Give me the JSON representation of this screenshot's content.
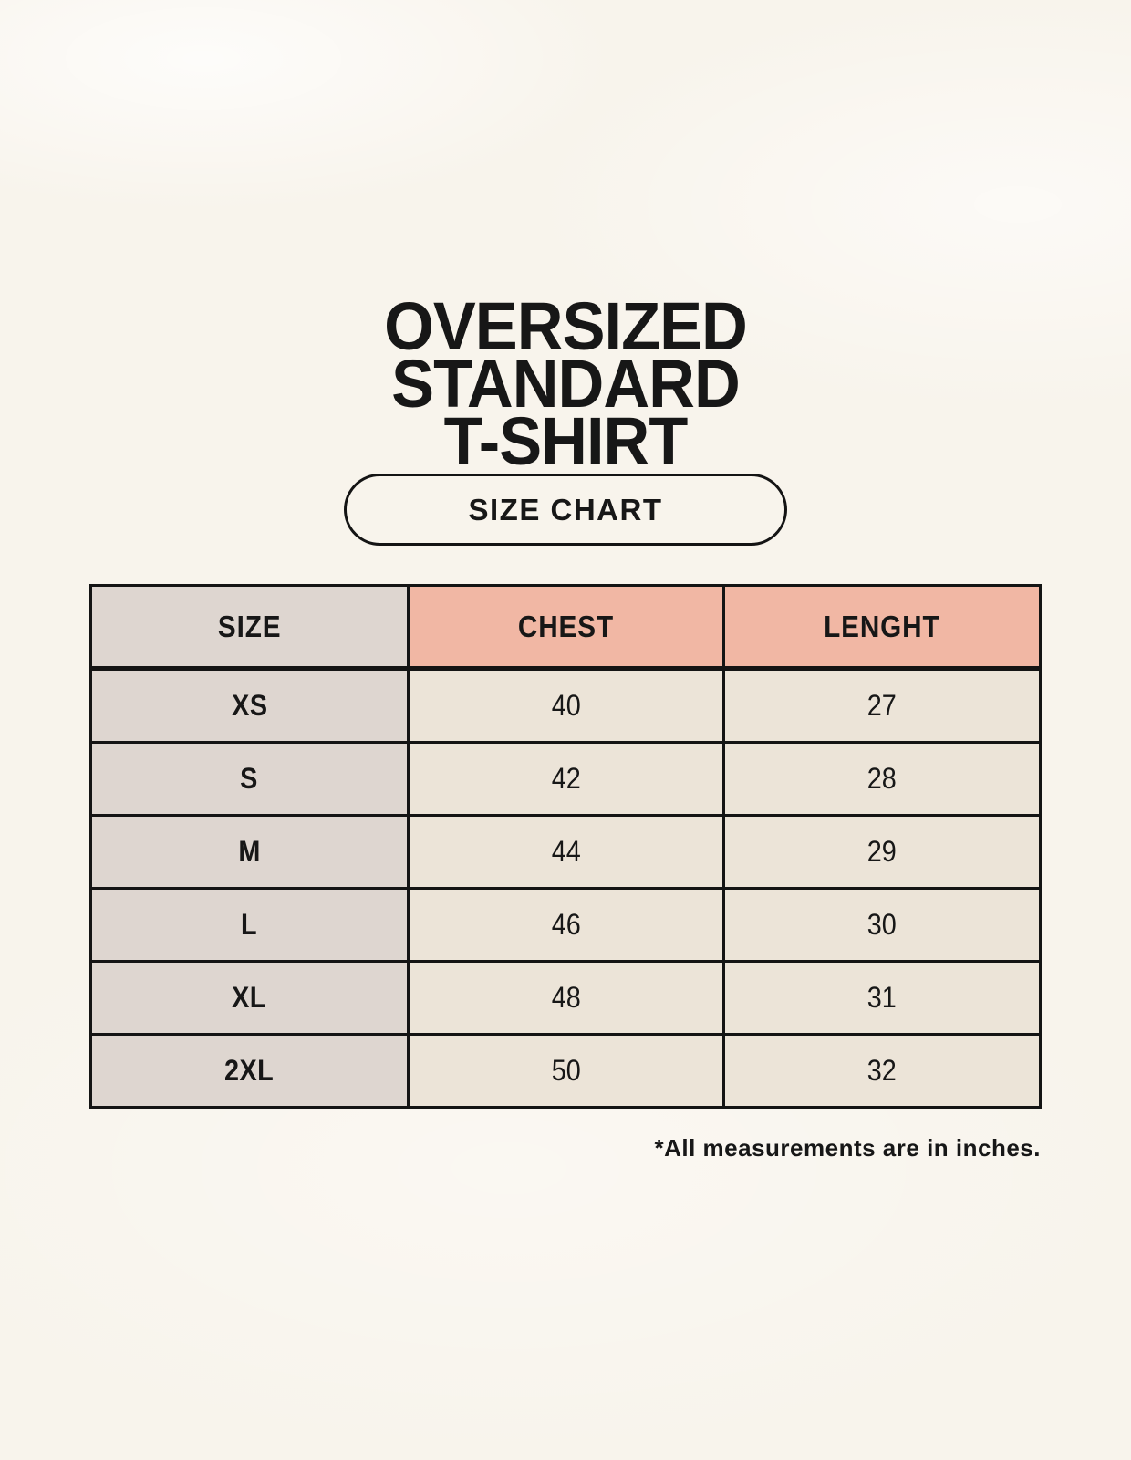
{
  "page": {
    "background_color": "#f8f4ec",
    "text_color": "#171717"
  },
  "title": {
    "line1": "OVERSIZED",
    "line2": "STANDARD",
    "line3": "T-SHIRT"
  },
  "size_chart_button": {
    "label": "SIZE CHART"
  },
  "table": {
    "headers": [
      "SIZE",
      "CHEST",
      "LENGHT"
    ],
    "rows": [
      {
        "size": "XS",
        "chest": "40",
        "length": "27"
      },
      {
        "size": "S",
        "chest": "42",
        "length": "28"
      },
      {
        "size": "M",
        "chest": "44",
        "length": "29"
      },
      {
        "size": "L",
        "chest": "46",
        "length": "30"
      },
      {
        "size": "XL",
        "chest": "48",
        "length": "31"
      },
      {
        "size": "2XL",
        "chest": "50",
        "length": "32"
      }
    ],
    "colors": {
      "header_accent": "#f1b7a4",
      "size_column": "#ded6d0",
      "data_cell": "#ece4d8",
      "border": "#141414"
    }
  },
  "footnote": "*All measurements are in inches.",
  "chart_data": {
    "type": "table",
    "title": "OVERSIZED STANDARD T-SHIRT — SIZE CHART",
    "columns": [
      "SIZE",
      "CHEST",
      "LENGHT"
    ],
    "categories": [
      "XS",
      "S",
      "M",
      "L",
      "XL",
      "2XL"
    ],
    "series": [
      {
        "name": "CHEST",
        "values": [
          40,
          42,
          44,
          46,
          48,
          50
        ]
      },
      {
        "name": "LENGHT",
        "values": [
          27,
          28,
          29,
          30,
          31,
          32
        ]
      }
    ],
    "units": "inches"
  }
}
